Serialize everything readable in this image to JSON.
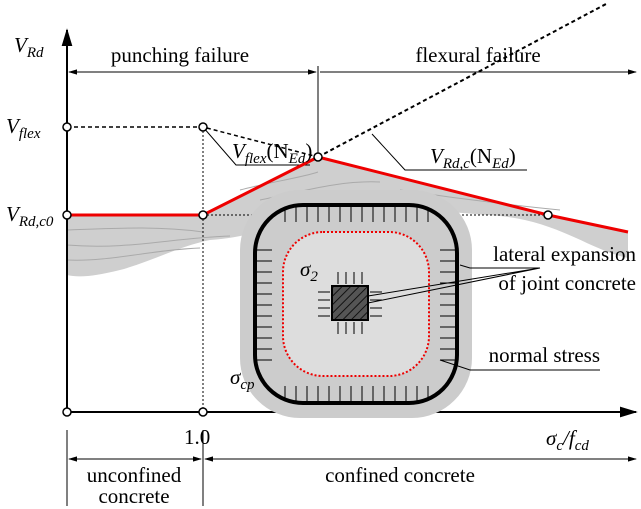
{
  "axes": {
    "y_label": {
      "base": "V",
      "sub": "Rd"
    },
    "x_label": {
      "base": "σ",
      "sub": "c",
      "mid": "/f",
      "sub2": "cd"
    },
    "x_tick": "1.0"
  },
  "levels": {
    "flex": {
      "base": "V",
      "sub": "flex"
    },
    "rdc0": {
      "base": "V",
      "sub": "Rd,c0"
    }
  },
  "curves": {
    "flex_n": {
      "base": "V",
      "sub": "flex",
      "mid": "(N",
      "sub2": "Ed",
      "end": ")"
    },
    "rdc_n": {
      "base": "V",
      "sub": "Rd,c",
      "mid": "(N",
      "sub2": "Ed",
      "end": ")"
    }
  },
  "zones": {
    "punching": "punching failure",
    "flexural": "flexural failure",
    "unconfined": [
      "unconfined",
      "concrete"
    ],
    "confined": "confined concrete"
  },
  "joint": {
    "sigma2": {
      "base": "σ",
      "sub": "2"
    },
    "sigmacp": {
      "base": "σ",
      "sub": "cp"
    },
    "lateral": [
      "lateral expansion",
      "of joint concrete"
    ],
    "normal": "normal stress"
  }
}
